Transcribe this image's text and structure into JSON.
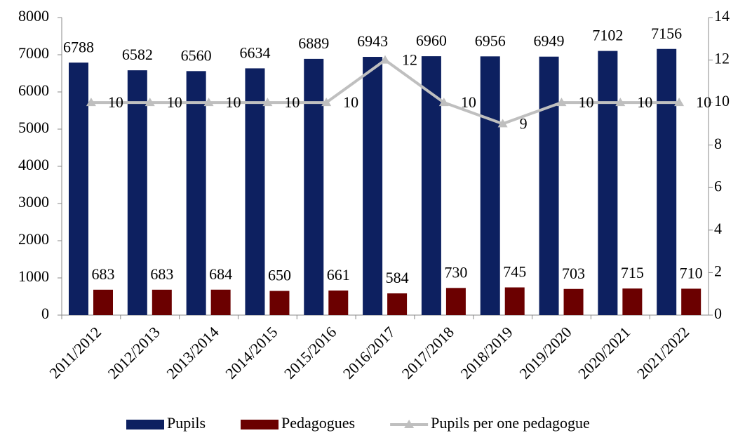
{
  "chart_data": {
    "type": "bar",
    "categories": [
      "2011/2012",
      "2012/2013",
      "2013/2014",
      "2014/2015",
      "2015/2016",
      "2016/2017",
      "2017/2018",
      "2018/2019",
      "2019/2020",
      "2020/2021",
      "2021/2022"
    ],
    "series": [
      {
        "name": "Pupils",
        "color": "#0d2060",
        "values": [
          6788,
          6582,
          6560,
          6634,
          6889,
          6943,
          6960,
          6956,
          6949,
          7102,
          7156
        ]
      },
      {
        "name": "Pedagogues",
        "color": "#6b0000",
        "values": [
          683,
          683,
          684,
          650,
          661,
          584,
          730,
          745,
          703,
          715,
          710
        ]
      },
      {
        "name": "Pupils per one pedagogue",
        "color": "#bfbfbf",
        "type": "line",
        "axis": "y2",
        "values": [
          10,
          10,
          10,
          10,
          10,
          12,
          10,
          9,
          10,
          10,
          10
        ]
      }
    ],
    "ylim": [
      0,
      8000
    ],
    "yticks": [
      0,
      1000,
      2000,
      3000,
      4000,
      5000,
      6000,
      7000,
      8000
    ],
    "y2lim": [
      0,
      14
    ],
    "y2ticks": [
      0,
      2,
      4,
      6,
      8,
      10,
      12,
      14
    ],
    "legend": "bottom"
  }
}
